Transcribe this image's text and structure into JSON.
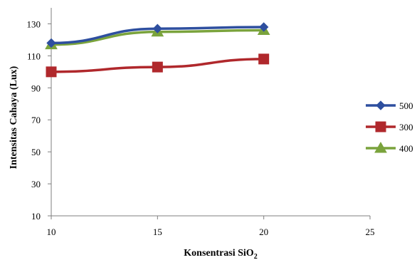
{
  "chart_data": {
    "type": "line",
    "xlabel": "Konsentrasi SiO",
    "xlabel_subscript": "2",
    "ylabel": "Intensitas Cahaya (Lux)",
    "xlim": [
      10,
      25
    ],
    "ylim": [
      10,
      140
    ],
    "x_ticks": [
      "10",
      "15",
      "20",
      "25"
    ],
    "y_ticks": [
      "10",
      "30",
      "50",
      "70",
      "90",
      "110",
      "130"
    ],
    "grid": false,
    "legend_position": "right",
    "x": [
      10,
      15,
      20
    ],
    "series": [
      {
        "name": "500",
        "values": [
          118,
          127,
          128
        ],
        "color": "#2e4f9f",
        "marker": "diamond"
      },
      {
        "name": "300",
        "values": [
          100,
          103,
          108
        ],
        "color": "#b0282c",
        "marker": "square"
      },
      {
        "name": "400",
        "values": [
          117,
          125,
          126
        ],
        "color": "#7aa33c",
        "marker": "triangle"
      }
    ]
  }
}
